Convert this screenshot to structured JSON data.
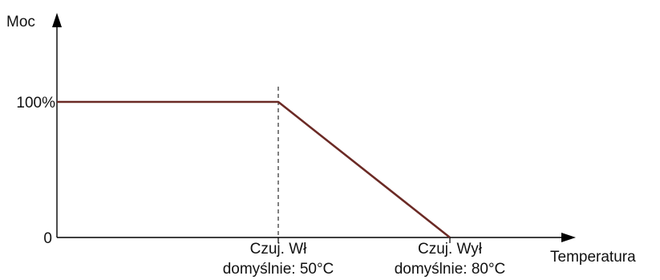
{
  "chart_data": {
    "type": "line",
    "ylabel": "Moc",
    "xlabel": "Temperatura",
    "y_ticks": [
      {
        "value": 0,
        "label": "0"
      },
      {
        "value": 100,
        "label": "100%"
      }
    ],
    "x_ticks": [
      {
        "value": 50,
        "line1": "Czuj. Wł",
        "line2": "domyślnie: 50°C"
      },
      {
        "value": 80,
        "line1": "Czuj. Wył",
        "line2": "domyślnie: 80°C"
      }
    ],
    "series": [
      {
        "color": "#6b2a25",
        "points": [
          {
            "x": 0,
            "y": 100
          },
          {
            "x": 50,
            "y": 100
          },
          {
            "x": 80,
            "y": 0
          }
        ]
      }
    ],
    "marker_line": {
      "x": 50,
      "style": "dashed"
    },
    "xlim": [
      0,
      100
    ],
    "ylim": [
      0,
      100
    ],
    "grid": false,
    "legend": "none"
  }
}
